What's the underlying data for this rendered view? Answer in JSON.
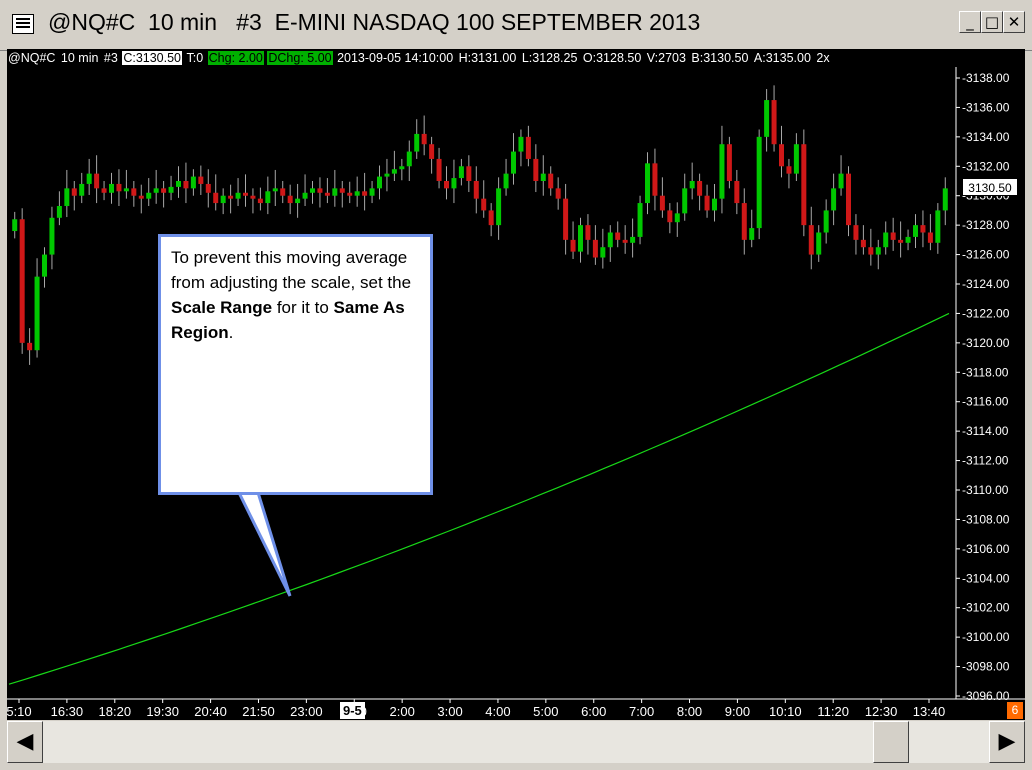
{
  "window": {
    "title": "@NQ#C  10 min   #3  E-MINI NASDAQ 100 SEPTEMBER 2013",
    "minimize_glyph": "_",
    "maximize_glyph": "□",
    "close_glyph": "✕"
  },
  "status": {
    "symbol": "@NQ#C",
    "interval": "10 min",
    "chart_no": "#3",
    "close": "C:3130.50",
    "ticks": "T:0",
    "change": "Chg: 2.00",
    "day_change": "DChg: 5.00",
    "datetime": "2013-09-05 14:10:00",
    "high": "H:3131.00",
    "low": "L:3128.25",
    "open": "O:3128.50",
    "volume": "V:2703",
    "bid": "B:3130.50",
    "ask": "A:3135.00",
    "extra": "2x"
  },
  "price_tag": "3130.50",
  "time_box": "9-5",
  "marker": "6",
  "callout": {
    "text1": "To prevent this moving average from adjusting the scale, set the ",
    "bold1": "Scale Range",
    "text2": " for it to ",
    "bold2": "Same As Region",
    "text3": "."
  },
  "scrollbar": {
    "left_arrow": "◀",
    "right_arrow": "▶"
  },
  "colors": {
    "up_candle": "#00c800",
    "down_candle": "#d01818",
    "wick": "#a8a8a8",
    "moving_average": "#18d818",
    "callout_border": "#6f90e8"
  },
  "chart_data": {
    "type": "candlestick",
    "y_axis": {
      "min": 3096,
      "max": 3138,
      "ticks": [
        3096,
        3098,
        3100,
        3102,
        3104,
        3106,
        3108,
        3110,
        3112,
        3114,
        3116,
        3118,
        3120,
        3122,
        3124,
        3126,
        3128,
        3130,
        3132,
        3134,
        3136,
        3138
      ]
    },
    "x_ticks": [
      "5:10",
      "16:30",
      "18:20",
      "19:30",
      "20:40",
      "21:50",
      "23:00",
      "1:00",
      "2:00",
      "3:00",
      "4:00",
      "5:00",
      "6:00",
      "7:00",
      "8:00",
      "9:00",
      "10:10",
      "11:20",
      "12:30",
      "13:40"
    ],
    "moving_average": {
      "start": 3096.8,
      "end": 3122.0
    },
    "closes": [
      3128.4,
      3120.0,
      3119.5,
      3124.5,
      3126.0,
      3128.5,
      3129.3,
      3130.5,
      3130.0,
      3130.8,
      3131.5,
      3130.5,
      3130.2,
      3130.8,
      3130.3,
      3130.5,
      3130.0,
      3129.8,
      3130.2,
      3130.5,
      3130.2,
      3130.6,
      3131.0,
      3130.5,
      3131.3,
      3130.8,
      3130.2,
      3129.5,
      3130.0,
      3129.8,
      3130.2,
      3130.0,
      3129.8,
      3129.5,
      3130.3,
      3130.5,
      3130.0,
      3129.5,
      3129.8,
      3130.2,
      3130.5,
      3130.2,
      3130.0,
      3130.5,
      3130.2,
      3130.0,
      3130.3,
      3130.0,
      3130.5,
      3131.3,
      3131.5,
      3131.8,
      3132.0,
      3133.0,
      3134.2,
      3133.5,
      3132.5,
      3131.0,
      3130.5,
      3131.2,
      3132.0,
      3131.0,
      3129.8,
      3129.0,
      3128.0,
      3130.5,
      3131.5,
      3133.0,
      3134.0,
      3132.5,
      3131.0,
      3131.5,
      3130.5,
      3129.8,
      3127.0,
      3126.2,
      3128.0,
      3127.0,
      3125.8,
      3126.5,
      3127.5,
      3127.0,
      3126.8,
      3127.2,
      3129.5,
      3132.2,
      3130.0,
      3129.0,
      3128.2,
      3128.8,
      3130.5,
      3131.0,
      3130.0,
      3129.0,
      3129.8,
      3133.5,
      3131.0,
      3129.5,
      3127.0,
      3127.8,
      3134.0,
      3136.5,
      3133.5,
      3132.0,
      3131.5,
      3133.5,
      3128.0,
      3126.0,
      3127.5,
      3129.0,
      3130.5,
      3131.5,
      3128.0,
      3127.0,
      3126.5,
      3126.0,
      3126.5,
      3127.5,
      3127.0,
      3126.8,
      3127.2,
      3128.0,
      3127.5,
      3126.8,
      3129.0,
      3130.5
    ]
  }
}
